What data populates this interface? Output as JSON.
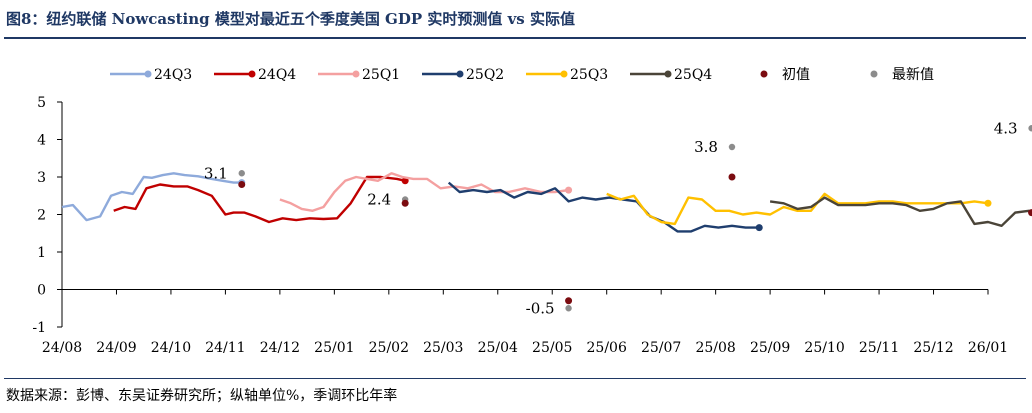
{
  "title": "图8：纽约联储 Nowcasting 模型对最近五个季度美国 GDP 实时预测值 vs 实际值",
  "source": "数据来源：彭博、东吴证券研究所；纵轴单位%，季调环比年率",
  "colors": {
    "title": "#1f3864",
    "24Q3": "#8eaadb",
    "24Q4": "#c00000",
    "25Q1": "#f4a0a0",
    "25Q2": "#1f3e6e",
    "25Q3": "#ffc000",
    "25Q4": "#4a4438",
    "initial": "#7b0c10",
    "latest": "#8c8c8c"
  },
  "chart_data": {
    "type": "line",
    "xlabel": "",
    "ylabel": "",
    "ylim": [
      -1,
      5
    ],
    "yticks": [
      "-1",
      "0",
      "1",
      "2",
      "3",
      "4",
      "5"
    ],
    "xticks": [
      "24/08",
      "24/09",
      "24/10",
      "24/11",
      "24/12",
      "25/01",
      "25/02",
      "25/03",
      "25/04",
      "25/05",
      "25/06",
      "25/07",
      "25/08",
      "25/09",
      "25/10",
      "25/11",
      "25/12",
      "26/01"
    ],
    "legend_position": "top",
    "x_unit": "months since 24/08",
    "series": [
      {
        "name": "24Q3",
        "x": [
          0,
          0.2,
          0.45,
          0.7,
          0.9,
          1.1,
          1.3,
          1.5,
          1.65,
          1.85,
          2.05,
          2.25,
          2.5,
          2.75,
          2.95,
          3.15,
          3.3
        ],
        "y": [
          2.2,
          2.25,
          1.85,
          1.95,
          2.5,
          2.6,
          2.55,
          3.0,
          2.98,
          3.05,
          3.1,
          3.05,
          3.02,
          2.95,
          2.9,
          2.85,
          2.85
        ]
      },
      {
        "name": "24Q4",
        "x": [
          0.95,
          1.15,
          1.35,
          1.55,
          1.8,
          2.05,
          2.3,
          2.5,
          2.75,
          3.0,
          3.15,
          3.35,
          3.55,
          3.8,
          4.05,
          4.3,
          4.55,
          4.8,
          5.05,
          5.3,
          5.6,
          5.85,
          6.15,
          6.3
        ],
        "y": [
          2.1,
          2.2,
          2.15,
          2.7,
          2.8,
          2.75,
          2.75,
          2.65,
          2.5,
          2.0,
          2.05,
          2.05,
          1.95,
          1.8,
          1.9,
          1.85,
          1.9,
          1.88,
          1.9,
          2.3,
          3.0,
          3.0,
          2.95,
          2.9
        ]
      },
      {
        "name": "25Q1",
        "x": [
          4.0,
          4.2,
          4.4,
          4.6,
          4.8,
          5.0,
          5.2,
          5.4,
          5.6,
          5.8,
          6.05,
          6.25,
          6.45,
          6.7,
          6.95,
          7.2,
          7.45,
          7.7,
          7.95,
          8.2,
          8.5,
          8.8,
          9.05,
          9.3
        ],
        "y": [
          2.4,
          2.3,
          2.15,
          2.1,
          2.2,
          2.6,
          2.9,
          3.0,
          2.95,
          2.9,
          3.1,
          3.0,
          2.95,
          2.95,
          2.7,
          2.75,
          2.7,
          2.8,
          2.6,
          2.6,
          2.7,
          2.6,
          2.6,
          2.65
        ]
      },
      {
        "name": "25Q2",
        "x": [
          7.1,
          7.3,
          7.55,
          7.8,
          8.05,
          8.3,
          8.55,
          8.8,
          9.05,
          9.3,
          9.55,
          9.8,
          10.05,
          10.3,
          10.55,
          10.8,
          11.05,
          11.3,
          11.55,
          11.8,
          12.05,
          12.3,
          12.55,
          12.8
        ],
        "y": [
          2.85,
          2.6,
          2.65,
          2.6,
          2.65,
          2.45,
          2.6,
          2.55,
          2.7,
          2.35,
          2.45,
          2.4,
          2.45,
          2.4,
          2.35,
          1.95,
          1.8,
          1.55,
          1.55,
          1.7,
          1.65,
          1.7,
          1.65,
          1.65
        ]
      },
      {
        "name": "25Q3",
        "x": [
          10.0,
          10.25,
          10.5,
          10.75,
          11.0,
          11.25,
          11.5,
          11.75,
          12.0,
          12.25,
          12.5,
          12.75,
          13.0,
          13.25,
          13.5,
          13.75,
          14.0,
          14.25,
          14.5,
          14.75,
          15.0,
          15.25,
          15.5,
          15.75,
          16.0,
          16.25,
          16.5,
          16.75,
          17.0
        ],
        "y": [
          2.55,
          2.4,
          2.5,
          2.0,
          1.8,
          1.75,
          2.45,
          2.4,
          2.1,
          2.1,
          2.0,
          2.05,
          2.0,
          2.2,
          2.1,
          2.1,
          2.55,
          2.3,
          2.3,
          2.3,
          2.35,
          2.35,
          2.3,
          2.3,
          2.3,
          2.3,
          2.3,
          2.35,
          2.3
        ]
      },
      {
        "name": "25Q4",
        "x": [
          13.0,
          13.25,
          13.5,
          13.75,
          14.0,
          14.25,
          14.5,
          14.75,
          15.0,
          15.25,
          15.5,
          15.75,
          16.0,
          16.25,
          16.5,
          16.75,
          17.0,
          17.25,
          17.5,
          17.75,
          18.0
        ],
        "y": [
          2.35,
          2.3,
          2.15,
          2.2,
          2.45,
          2.25,
          2.25,
          2.25,
          2.3,
          2.3,
          2.25,
          2.1,
          2.15,
          2.3,
          2.35,
          1.75,
          1.8,
          1.7,
          2.05,
          2.1,
          2.05
        ]
      }
    ],
    "initial_values": [
      {
        "quarter": "24Q3",
        "x": 3.3,
        "y": 2.8
      },
      {
        "quarter": "24Q4",
        "x": 6.3,
        "y": 2.3
      },
      {
        "quarter": "25Q1",
        "x": 9.3,
        "y": -0.3
      },
      {
        "quarter": "25Q2",
        "x": 12.3,
        "y": 3.0
      },
      {
        "quarter": "25Q4",
        "x": 17.8,
        "y": 2.05
      }
    ],
    "latest_values": [
      {
        "quarter": "24Q3",
        "x": 3.3,
        "y": 3.1,
        "label": "3.1"
      },
      {
        "quarter": "24Q4",
        "x": 6.3,
        "y": 2.4,
        "label": "2.4"
      },
      {
        "quarter": "25Q1",
        "x": 9.3,
        "y": -0.5,
        "label": "-0.5"
      },
      {
        "quarter": "25Q2",
        "x": 12.3,
        "y": 3.8,
        "label": "3.8"
      },
      {
        "quarter": "25Q4",
        "x": 17.8,
        "y": 4.3,
        "label": "4.3"
      }
    ],
    "legend": [
      {
        "key": "24Q3",
        "label": "24Q3",
        "kind": "line"
      },
      {
        "key": "24Q4",
        "label": "24Q4",
        "kind": "line"
      },
      {
        "key": "25Q1",
        "label": "25Q1",
        "kind": "line"
      },
      {
        "key": "25Q2",
        "label": "25Q2",
        "kind": "line"
      },
      {
        "key": "25Q3",
        "label": "25Q3",
        "kind": "line"
      },
      {
        "key": "25Q4",
        "label": "25Q4",
        "kind": "line"
      },
      {
        "key": "initial",
        "label": "初值",
        "kind": "dot"
      },
      {
        "key": "latest",
        "label": "最新值",
        "kind": "dot"
      }
    ]
  }
}
